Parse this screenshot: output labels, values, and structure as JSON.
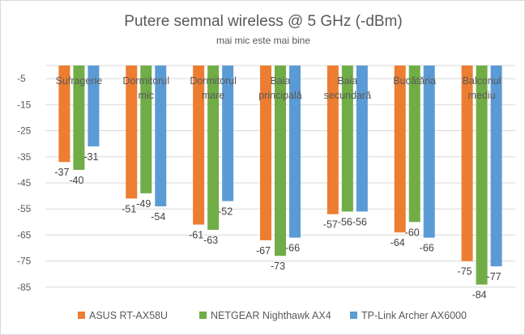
{
  "chart_data": {
    "type": "bar",
    "title": "Putere semnal wireless @ 5 GHz (-dBm)",
    "subtitle": "mai mic este mai bine",
    "categories": [
      [
        "Sufragerie"
      ],
      [
        "Dormitorul",
        "mic"
      ],
      [
        "Dormitorul",
        "mare"
      ],
      [
        "Baia",
        "principală"
      ],
      [
        "Baia",
        "secundară"
      ],
      [
        "Bucătăria"
      ],
      [
        "Balconul",
        "mediu"
      ]
    ],
    "series": [
      {
        "name": "ASUS RT-AX58U",
        "color": "#ED7D31",
        "values": [
          -37,
          -51,
          -61,
          -67,
          -57,
          -64,
          -75
        ]
      },
      {
        "name": "NETGEAR Nighthawk AX4",
        "color": "#70AD47",
        "values": [
          -40,
          -49,
          -63,
          -73,
          -56,
          -60,
          -84
        ]
      },
      {
        "name": "TP-Link Archer AX6000",
        "color": "#5B9BD5",
        "values": [
          -31,
          -54,
          -52,
          -66,
          -56,
          -66,
          -77
        ]
      }
    ],
    "yticks": [
      "-5",
      "-15",
      "-25",
      "-35",
      "-45",
      "-55",
      "-65",
      "-75",
      "-85"
    ],
    "ylim": [
      -90,
      0
    ],
    "grid": true,
    "legend_position": "bottom"
  }
}
